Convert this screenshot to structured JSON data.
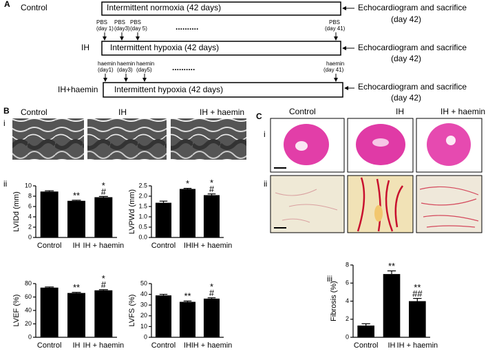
{
  "panel_a": {
    "label": "A",
    "rows": [
      {
        "group": "Control",
        "protocol": "Intermittent  normoxia (42 days)",
        "endpoint": "Echocardiogram and sacrifice",
        "endpoint_day": "(day 42)"
      },
      {
        "group": "IH",
        "protocol": "Intermittent  hypoxia (42 days)",
        "endpoint": "Echocardiogram and sacrifice",
        "endpoint_day": "(day 42)"
      },
      {
        "group": "IH+haemin",
        "protocol": "Intermittent  hypoxia (42 days)",
        "endpoint": "Echocardiogram and sacrifice",
        "endpoint_day": "(day 42)"
      }
    ],
    "pbs_doses": [
      {
        "agent": "PBS",
        "day": "(day 1)"
      },
      {
        "agent": "PBS",
        "day": "(day3)"
      },
      {
        "agent": "PBS",
        "day": "(day 5)"
      },
      {
        "agent": "PBS",
        "day": "(day 41)"
      }
    ],
    "haemin_doses": [
      {
        "agent": "haemin",
        "day": "(day1)"
      },
      {
        "agent": "haemin",
        "day": "(day3)"
      },
      {
        "agent": "haemin",
        "day": "(day5)"
      },
      {
        "agent": "haemin",
        "day": "(day 41)"
      }
    ],
    "ellipsis": ".........."
  },
  "panel_b": {
    "label": "B",
    "sub_i": "i",
    "sub_ii": "ii",
    "image_labels": [
      "Control",
      "IH",
      "IH + haemin"
    ]
  },
  "panel_c": {
    "label": "C",
    "sub_i": "i",
    "sub_ii": "ii",
    "sub_iii": "iii",
    "image_labels": [
      "Control",
      "IH",
      "IH + haemin"
    ]
  },
  "chart_data": [
    {
      "type": "bar",
      "y_label": "LVIDd (mm)",
      "categories": [
        "Control",
        "IH",
        "IH + haemin"
      ],
      "values": [
        8.9,
        7.1,
        7.8
      ],
      "errors": [
        0.15,
        0.12,
        0.15
      ],
      "annotations": [
        [],
        [
          "**"
        ],
        [
          "*",
          "#"
        ]
      ],
      "color": "#000000",
      "ylim": [
        0,
        10
      ],
      "yticks": [
        0,
        2,
        4,
        6,
        8,
        10
      ]
    },
    {
      "type": "bar",
      "y_label": "LVPWd (mm)",
      "categories": [
        "Control",
        "IH",
        "IH + haemin"
      ],
      "values": [
        1.68,
        2.35,
        2.05
      ],
      "errors": [
        0.08,
        0.03,
        0.06
      ],
      "annotations": [
        [],
        [
          "*"
        ],
        [
          "*",
          "#"
        ]
      ],
      "color": "#000000",
      "ylim": [
        0,
        2.5
      ],
      "yticks": [
        {
          "value": 0,
          "label": "0.0"
        },
        0.5,
        {
          "value": 1,
          "label": "1.0"
        },
        1.5,
        {
          "value": 2,
          "label": "2.0"
        },
        2.5
      ]
    },
    {
      "type": "bar",
      "y_label": "LVEF (%)",
      "categories": [
        "Control",
        "IH",
        "IH + haemin"
      ],
      "values": [
        74,
        66,
        70
      ],
      "errors": [
        1,
        1,
        1
      ],
      "annotations": [
        [],
        [
          "**"
        ],
        [
          "*",
          "#"
        ]
      ],
      "color": "#000000",
      "ylim": [
        0,
        80
      ],
      "yticks": [
        0,
        20,
        40,
        60,
        80
      ]
    },
    {
      "type": "bar",
      "y_label": "LVFS (%)",
      "categories": [
        "Control",
        "IH",
        "IH + haemin"
      ],
      "values": [
        39,
        33,
        36
      ],
      "errors": [
        1,
        0.8,
        0.8
      ],
      "annotations": [
        [],
        [
          "**"
        ],
        [
          "*",
          "#"
        ]
      ],
      "color": "#000000",
      "ylim": [
        0,
        50
      ],
      "yticks": [
        0,
        10,
        20,
        30,
        40,
        50
      ]
    },
    {
      "type": "bar",
      "y_label": "Fibrosis (%)",
      "categories": [
        "Control",
        "IH",
        "IH + haemin"
      ],
      "values": [
        1.3,
        7.0,
        4.0
      ],
      "errors": [
        0.2,
        0.35,
        0.3
      ],
      "annotations": [
        [],
        [
          "**"
        ],
        [
          "**",
          "##"
        ]
      ],
      "color": "#000000",
      "ylim": [
        0,
        8
      ],
      "yticks": [
        0,
        2,
        4,
        6,
        8
      ]
    }
  ]
}
